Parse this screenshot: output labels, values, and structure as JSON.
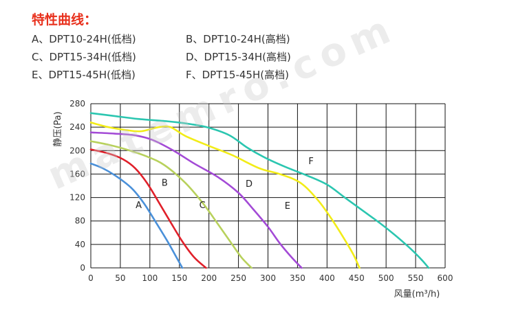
{
  "header": {
    "title": "特性曲线：",
    "legend_items": [
      "A、DPT10-24H(低档)",
      "B、DPT10-24H(高档)",
      "C、DPT15-34H(低档)",
      "D、DPT15-34H(高档)",
      "E、DPT15-45H(低档)",
      "F、DPT15-45H(高档)"
    ]
  },
  "watermark": "matemro.com",
  "chart_data": {
    "type": "line",
    "xlabel": "风量(m³/h)",
    "ylabel": "静压(Pa)",
    "xlim": [
      0,
      600
    ],
    "ylim": [
      0,
      280
    ],
    "xticks": [
      "0",
      "50",
      "100",
      "150",
      "200",
      "250",
      "300",
      "350",
      "400",
      "450",
      "500",
      "550",
      "600"
    ],
    "yticks": [
      "0",
      "40",
      "80",
      "120",
      "160",
      "200",
      "240",
      "280"
    ],
    "grid": true,
    "series": [
      {
        "name": "A",
        "color": "#4a90d9",
        "label_at": [
          81,
          102
        ],
        "points": [
          [
            0,
            178
          ],
          [
            20,
            170
          ],
          [
            45,
            155
          ],
          [
            70,
            135
          ],
          [
            90,
            110
          ],
          [
            110,
            78
          ],
          [
            130,
            45
          ],
          [
            145,
            18
          ],
          [
            155,
            0
          ]
        ]
      },
      {
        "name": "B",
        "color": "#e0202a",
        "label_at": [
          125,
          140
        ],
        "points": [
          [
            0,
            202
          ],
          [
            30,
            195
          ],
          [
            55,
            185
          ],
          [
            75,
            170
          ],
          [
            95,
            145
          ],
          [
            115,
            112
          ],
          [
            135,
            78
          ],
          [
            155,
            45
          ],
          [
            175,
            18
          ],
          [
            195,
            0
          ]
        ]
      },
      {
        "name": "C",
        "color": "#b8d15c",
        "label_at": [
          189,
          102
        ],
        "points": [
          [
            0,
            216
          ],
          [
            30,
            210
          ],
          [
            60,
            202
          ],
          [
            95,
            190
          ],
          [
            125,
            175
          ],
          [
            160,
            145
          ],
          [
            190,
            110
          ],
          [
            215,
            75
          ],
          [
            238,
            42
          ],
          [
            255,
            18
          ],
          [
            272,
            0
          ]
        ]
      },
      {
        "name": "D",
        "color": "#a34ad6",
        "label_at": [
          268,
          138
        ],
        "points": [
          [
            0,
            231
          ],
          [
            40,
            229
          ],
          [
            75,
            226
          ],
          [
            105,
            218
          ],
          [
            140,
            200
          ],
          [
            175,
            178
          ],
          [
            215,
            155
          ],
          [
            250,
            128
          ],
          [
            275,
            100
          ],
          [
            300,
            70
          ],
          [
            320,
            42
          ],
          [
            340,
            18
          ],
          [
            357,
            0
          ]
        ]
      },
      {
        "name": "E",
        "color": "#f2ec18",
        "label_at": [
          333,
          101
        ],
        "points": [
          [
            0,
            248
          ],
          [
            30,
            240
          ],
          [
            60,
            235
          ],
          [
            85,
            233
          ],
          [
            115,
            240
          ],
          [
            135,
            240
          ],
          [
            160,
            225
          ],
          [
            200,
            208
          ],
          [
            240,
            192
          ],
          [
            285,
            170
          ],
          [
            320,
            160
          ],
          [
            355,
            145
          ],
          [
            385,
            115
          ],
          [
            410,
            80
          ],
          [
            430,
            48
          ],
          [
            445,
            22
          ],
          [
            455,
            0
          ]
        ]
      },
      {
        "name": "F",
        "color": "#2bc6b0",
        "label_at": [
          373,
          177
        ],
        "points": [
          [
            0,
            264
          ],
          [
            40,
            259
          ],
          [
            80,
            254
          ],
          [
            130,
            250
          ],
          [
            170,
            245
          ],
          [
            200,
            239
          ],
          [
            235,
            226
          ],
          [
            265,
            205
          ],
          [
            295,
            188
          ],
          [
            330,
            172
          ],
          [
            365,
            158
          ],
          [
            400,
            142
          ],
          [
            430,
            120
          ],
          [
            460,
            98
          ],
          [
            490,
            76
          ],
          [
            515,
            56
          ],
          [
            540,
            34
          ],
          [
            560,
            14
          ],
          [
            572,
            0
          ]
        ]
      }
    ]
  }
}
